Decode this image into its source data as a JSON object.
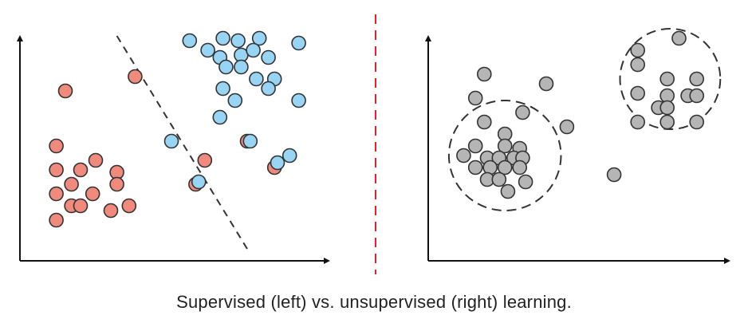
{
  "caption": "Supervised (left) vs. unsupervised (right) learning.",
  "colors": {
    "red_point": "#f08a7d",
    "blue_point": "#98d4f3",
    "gray_point": "#b5b5b5",
    "stroke": "#333333",
    "divider": "#e0202a"
  },
  "chart_data": [
    {
      "type": "scatter",
      "panel": "supervised",
      "series": [
        {
          "color": "#f08a7d",
          "points": [
            [
              1.5,
              7.1
            ],
            [
              3.8,
              7.7
            ],
            [
              2.0,
              3.8
            ],
            [
              7.5,
              5.0
            ],
            [
              1.2,
              4.8
            ],
            [
              2.5,
              4.2
            ],
            [
              1.2,
              3.8
            ],
            [
              3.2,
              3.7
            ],
            [
              1.7,
              3.2
            ],
            [
              3.2,
              3.2
            ],
            [
              1.2,
              2.8
            ],
            [
              2.4,
              2.8
            ],
            [
              5.8,
              3.2
            ],
            [
              1.7,
              2.3
            ],
            [
              2.0,
              2.3
            ],
            [
              3.0,
              2.1
            ],
            [
              3.6,
              2.3
            ],
            [
              1.2,
              1.7
            ],
            [
              6.1,
              4.2
            ],
            [
              8.4,
              3.9
            ]
          ]
        },
        {
          "color": "#98d4f3",
          "points": [
            [
              5.6,
              9.2
            ],
            [
              6.7,
              9.3
            ],
            [
              7.2,
              9.2
            ],
            [
              7.9,
              9.3
            ],
            [
              9.2,
              9.1
            ],
            [
              6.2,
              8.8
            ],
            [
              6.6,
              8.5
            ],
            [
              7.3,
              8.6
            ],
            [
              7.7,
              8.8
            ],
            [
              8.2,
              8.5
            ],
            [
              6.8,
              8.1
            ],
            [
              7.3,
              8.1
            ],
            [
              7.8,
              7.6
            ],
            [
              8.4,
              7.6
            ],
            [
              6.7,
              7.2
            ],
            [
              8.2,
              7.2
            ],
            [
              7.1,
              6.7
            ],
            [
              9.2,
              6.7
            ],
            [
              6.6,
              6.0
            ],
            [
              7.6,
              5.0
            ],
            [
              5.0,
              5.0
            ],
            [
              8.9,
              4.4
            ],
            [
              8.5,
              4.1
            ],
            [
              5.9,
              3.3
            ]
          ]
        }
      ],
      "boundary": [
        [
          3.2,
          9.4
        ],
        [
          7.5,
          0.5
        ]
      ]
    },
    {
      "type": "scatter",
      "panel": "unsupervised",
      "series": [
        {
          "color": "#b5b5b5",
          "points": [
            [
              1.9,
              7.8
            ],
            [
              4.0,
              7.4
            ],
            [
              1.6,
              6.8
            ],
            [
              3.2,
              6.2
            ],
            [
              1.9,
              5.8
            ],
            [
              2.6,
              5.3
            ],
            [
              1.6,
              4.8
            ],
            [
              2.6,
              4.8
            ],
            [
              3.1,
              4.7
            ],
            [
              4.7,
              5.6
            ],
            [
              1.2,
              4.4
            ],
            [
              2.0,
              4.3
            ],
            [
              2.4,
              4.3
            ],
            [
              2.9,
              4.3
            ],
            [
              3.2,
              4.3
            ],
            [
              1.6,
              3.9
            ],
            [
              2.1,
              3.9
            ],
            [
              2.6,
              3.9
            ],
            [
              3.1,
              3.9
            ],
            [
              2.0,
              3.4
            ],
            [
              2.4,
              3.4
            ],
            [
              3.3,
              3.3
            ],
            [
              2.7,
              2.9
            ],
            [
              6.3,
              3.6
            ],
            [
              7.1,
              8.8
            ],
            [
              8.5,
              9.3
            ],
            [
              7.1,
              8.2
            ],
            [
              8.1,
              7.6
            ],
            [
              9.1,
              7.6
            ],
            [
              7.1,
              7.0
            ],
            [
              8.1,
              6.9
            ],
            [
              8.8,
              6.9
            ],
            [
              9.1,
              6.9
            ],
            [
              7.8,
              6.4
            ],
            [
              8.1,
              6.4
            ],
            [
              7.1,
              5.8
            ],
            [
              8.1,
              5.8
            ],
            [
              9.1,
              5.8
            ]
          ]
        }
      ],
      "clusters": [
        [
          2.6,
          4.4,
          1.9,
          2.3
        ],
        [
          8.2,
          7.6,
          1.7,
          2.1
        ]
      ]
    }
  ]
}
